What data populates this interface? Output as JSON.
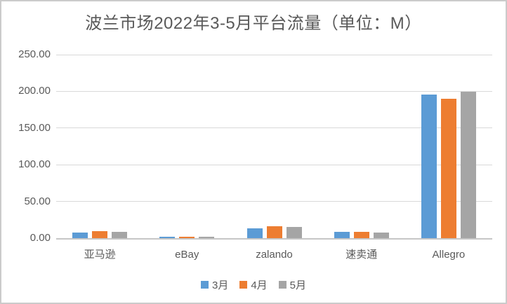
{
  "chart": {
    "title": "波兰市场2022年3-5月平台流量（单位：M）"
  },
  "chart_data": {
    "type": "bar",
    "title": "波兰市场2022年3-5月平台流量（单位：M）",
    "categories": [
      "亚马逊",
      "eBay",
      "zalando",
      "速卖通",
      "Allegro"
    ],
    "series": [
      {
        "name": "3月",
        "color": "#5B9BD5",
        "values": [
          8,
          2.2,
          13,
          9,
          196
        ]
      },
      {
        "name": "4月",
        "color": "#ED7D31",
        "values": [
          10,
          1.9,
          16,
          8.5,
          190
        ]
      },
      {
        "name": "5月",
        "color": "#A5A5A5",
        "values": [
          9,
          1.6,
          15,
          8,
          199
        ]
      }
    ],
    "xlabel": "",
    "ylabel": "",
    "ylim": [
      0,
      250
    ],
    "yticks": [
      0,
      50,
      100,
      150,
      200,
      250
    ],
    "ytick_decimals": 2,
    "grid": true,
    "legend_position": "bottom"
  },
  "colors": {
    "title_text": "#595959",
    "axis_text": "#595959",
    "gridline": "#D9D9D9",
    "axis_line": "#C6C6C6",
    "chart_border": "#CBCBCB",
    "background": "#FFFFFF"
  }
}
